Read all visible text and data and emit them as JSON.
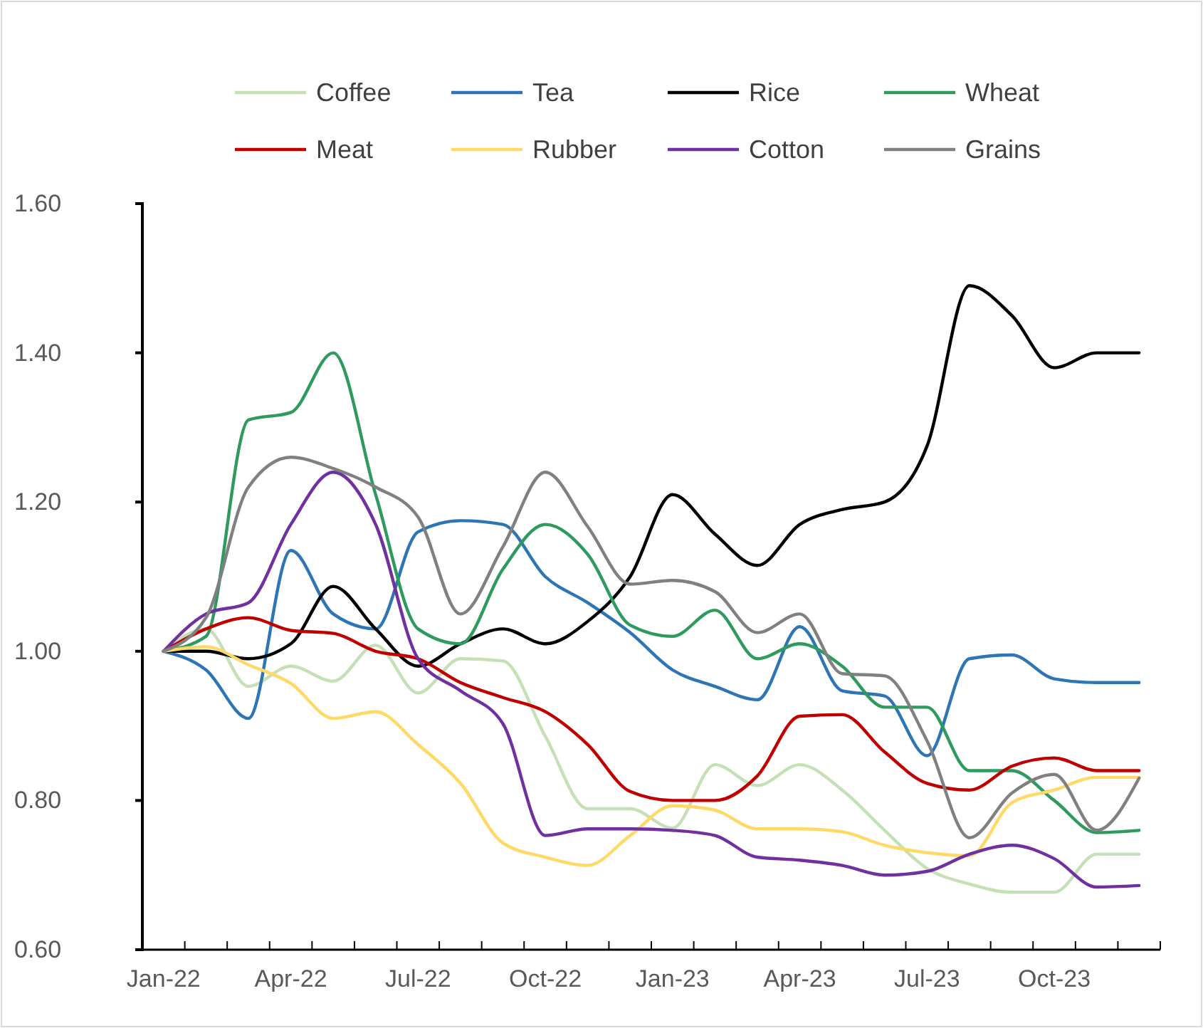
{
  "chart_data": {
    "type": "line",
    "categories": [
      "Jan-22",
      null,
      null,
      "Apr-22",
      null,
      null,
      "Jul-22",
      null,
      null,
      "Oct-22",
      null,
      null,
      "Jan-23",
      null,
      null,
      "Apr-23",
      null,
      null,
      "Jul-23",
      null,
      null,
      "Oct-23",
      null,
      null
    ],
    "series": [
      {
        "name": "Coffee",
        "color": "#c5e0b4",
        "values": [
          1.0,
          1.03,
          0.953,
          0.98,
          0.96,
          1.008,
          0.944,
          0.99,
          0.987,
          0.886,
          0.789,
          0.789,
          0.763,
          0.848,
          0.82,
          0.848,
          0.814,
          0.76,
          0.709,
          0.688,
          0.677,
          0.677,
          0.728,
          0.728
        ]
      },
      {
        "name": "Tea",
        "color": "#2e75b6",
        "values": [
          1.0,
          0.975,
          0.91,
          1.135,
          1.05,
          1.03,
          1.16,
          1.175,
          1.17,
          1.1,
          1.065,
          1.025,
          0.975,
          0.953,
          0.935,
          1.033,
          0.947,
          0.94,
          0.86,
          0.99,
          0.995,
          0.963,
          0.958,
          0.958
        ]
      },
      {
        "name": "Rice",
        "color": "#000000",
        "values": [
          1.0,
          1.0,
          0.99,
          1.01,
          1.087,
          1.03,
          0.98,
          1.01,
          1.03,
          1.01,
          1.04,
          1.1,
          1.21,
          1.157,
          1.115,
          1.17,
          1.19,
          1.2,
          1.275,
          1.49,
          1.45,
          1.38,
          1.4,
          1.4
        ]
      },
      {
        "name": "Wheat",
        "color": "#2e9a5e",
        "values": [
          1.0,
          1.02,
          1.31,
          1.32,
          1.4,
          1.21,
          1.03,
          1.01,
          1.11,
          1.17,
          1.13,
          1.035,
          1.02,
          1.055,
          0.99,
          1.01,
          0.98,
          0.925,
          0.925,
          0.84,
          0.84,
          0.8,
          0.757,
          0.76
        ]
      },
      {
        "name": "Meat",
        "color": "#c00000",
        "values": [
          1.0,
          1.03,
          1.045,
          1.028,
          1.024,
          1.0,
          0.99,
          0.958,
          0.938,
          0.919,
          0.875,
          0.812,
          0.8,
          0.8,
          0.833,
          0.913,
          0.915,
          0.865,
          0.823,
          0.814,
          0.846,
          0.857,
          0.84,
          0.84
        ]
      },
      {
        "name": "Rubber",
        "color": "#ffd966",
        "values": [
          1.0,
          1.006,
          0.982,
          0.957,
          0.91,
          0.919,
          0.875,
          0.823,
          0.743,
          0.724,
          0.713,
          0.753,
          0.793,
          0.787,
          0.762,
          0.762,
          0.758,
          0.74,
          0.73,
          0.726,
          0.797,
          0.814,
          0.831,
          0.831
        ]
      },
      {
        "name": "Cotton",
        "color": "#7030a0",
        "values": [
          1.0,
          1.05,
          1.065,
          1.17,
          1.24,
          1.17,
          0.99,
          0.947,
          0.903,
          0.753,
          0.762,
          0.762,
          0.76,
          0.753,
          0.724,
          0.72,
          0.713,
          0.7,
          0.705,
          0.728,
          0.74,
          0.722,
          0.684,
          0.686
        ]
      },
      {
        "name": "Grains",
        "color": "#808080",
        "values": [
          1.0,
          1.045,
          1.22,
          1.26,
          1.245,
          1.22,
          1.18,
          1.05,
          1.14,
          1.24,
          1.167,
          1.09,
          1.095,
          1.08,
          1.025,
          1.05,
          0.97,
          0.967,
          0.88,
          0.75,
          0.81,
          0.835,
          0.76,
          0.83
        ]
      }
    ],
    "ylim": [
      0.6,
      1.6
    ],
    "yticks": [
      {
        "value": 0.6,
        "label": "0.60"
      },
      {
        "value": 0.8,
        "label": "0.80"
      },
      {
        "value": 1.0,
        "label": "1.00"
      },
      {
        "value": 1.2,
        "label": "1.20"
      },
      {
        "value": 1.4,
        "label": "1.40"
      },
      {
        "value": 1.6,
        "label": "1.60"
      }
    ],
    "legend": "top",
    "grid": false,
    "marker": "none",
    "line_style": "solid"
  }
}
